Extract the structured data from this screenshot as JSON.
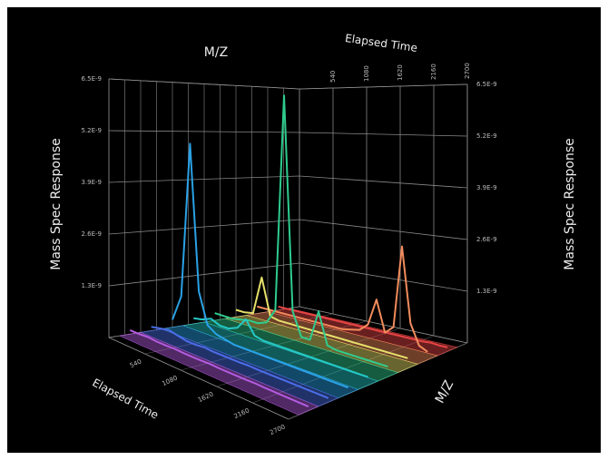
{
  "chart_data": {
    "type": "waterfall3d",
    "xlabel": "Elapsed Time",
    "zlabel": "M/Z",
    "ylabel": "Mass Spec Response",
    "xlim": [
      0,
      2700
    ],
    "xticks": [
      540,
      1080,
      1620,
      2160,
      2700
    ],
    "ylim": [
      0,
      6.5e-09
    ],
    "yticks": [
      {
        "value": 1.3e-09,
        "label": "1.3E-9"
      },
      {
        "value": 2.6e-09,
        "label": "2.6E-9"
      },
      {
        "value": 3.9e-09,
        "label": "3.9E-9"
      },
      {
        "value": 5.2e-09,
        "label": "5.2E-9"
      },
      {
        "value": 6.5e-09,
        "label": "6.5E-9"
      }
    ],
    "grid": true,
    "x": [
      0,
      135,
      270,
      405,
      540,
      675,
      810,
      945,
      1080,
      1215,
      1350,
      1485,
      1620,
      1755,
      1890,
      2025,
      2160,
      2295,
      2430,
      2565,
      2700
    ],
    "series": [
      {
        "color": "#b35ce0",
        "values": [
          1e-10,
          1e-10,
          1.2e-10,
          1e-10,
          1e-10,
          1.1e-10,
          1e-10,
          1e-10,
          1e-10,
          1.1e-10,
          1e-10,
          1e-10,
          1e-10,
          1e-10,
          1.1e-10,
          1e-10,
          1e-10,
          1e-10,
          1e-10,
          1e-10,
          1e-10
        ]
      },
      {
        "color": "#4a6ee8",
        "values": [
          1e-10,
          1.5e-10,
          2e-10,
          1.5e-10,
          1e-10,
          1e-10,
          1.2e-10,
          1e-10,
          1e-10,
          1e-10,
          1e-10,
          1.1e-10,
          1e-10,
          1e-10,
          1e-10,
          1e-10,
          1e-10,
          1e-10,
          1e-10,
          1e-10,
          1e-10
        ]
      },
      {
        "color": "#2aa2e6",
        "values": [
          2e-10,
          9e-10,
          5e-09,
          1.2e-09,
          4e-10,
          2.5e-10,
          2e-10,
          1.5e-10,
          1.5e-10,
          1.5e-10,
          1.5e-10,
          1.5e-10,
          1.5e-10,
          1.5e-10,
          1.5e-10,
          1.5e-10,
          1.5e-10,
          1.5e-10,
          1.5e-10,
          1.5e-10,
          1.5e-10
        ]
      },
      {
        "color": "#25c8c8",
        "values": [
          1.5e-10,
          2e-10,
          3e-10,
          2e-10,
          2e-10,
          3e-10,
          6e-10,
          2.5e-10,
          2e-10,
          2e-10,
          2e-10,
          2e-10,
          2e-10,
          2e-10,
          2e-10,
          2e-10,
          2e-10,
          2e-10,
          2e-10,
          2e-10,
          2e-10
        ]
      },
      {
        "color": "#2ecc8e",
        "values": [
          2e-10,
          2e-10,
          2e-10,
          2.5e-10,
          3e-10,
          3e-10,
          4e-10,
          8e-10,
          6.5e-09,
          9e-10,
          3e-10,
          3e-10,
          1.1e-09,
          3e-10,
          2.5e-10,
          2.5e-10,
          2.5e-10,
          2.5e-10,
          2.5e-10,
          2.5e-10,
          2.5e-10
        ]
      },
      {
        "color": "#e6e06a",
        "values": [
          2e-10,
          2e-10,
          2.5e-10,
          1.3e-09,
          3e-10,
          2.5e-10,
          2.5e-10,
          2.5e-10,
          2.5e-10,
          2.5e-10,
          2.5e-10,
          2.5e-10,
          2.5e-10,
          2.5e-10,
          2.5e-10,
          2.5e-10,
          2.5e-10,
          2.5e-10,
          2.5e-10,
          2.5e-10,
          2.5e-10
        ]
      },
      {
        "color": "#f28c5c",
        "values": [
          2e-10,
          2e-10,
          2e-10,
          2e-10,
          2e-10,
          2e-10,
          2e-10,
          2e-10,
          2e-10,
          2e-10,
          2e-10,
          2.5e-10,
          3e-10,
          5e-10,
          1.2e-09,
          4e-10,
          6e-10,
          2.7e-09,
          8e-10,
          3e-10,
          2e-10
        ]
      },
      {
        "color": "#e84444",
        "values": [
          1e-10,
          1e-10,
          1e-10,
          1e-10,
          1e-10,
          1e-10,
          1e-10,
          1e-10,
          1e-10,
          1e-10,
          1e-10,
          1e-10,
          1e-10,
          1e-10,
          1e-10,
          1e-10,
          1e-10,
          1e-10,
          1.2e-10,
          1e-10,
          1e-10
        ]
      }
    ]
  }
}
